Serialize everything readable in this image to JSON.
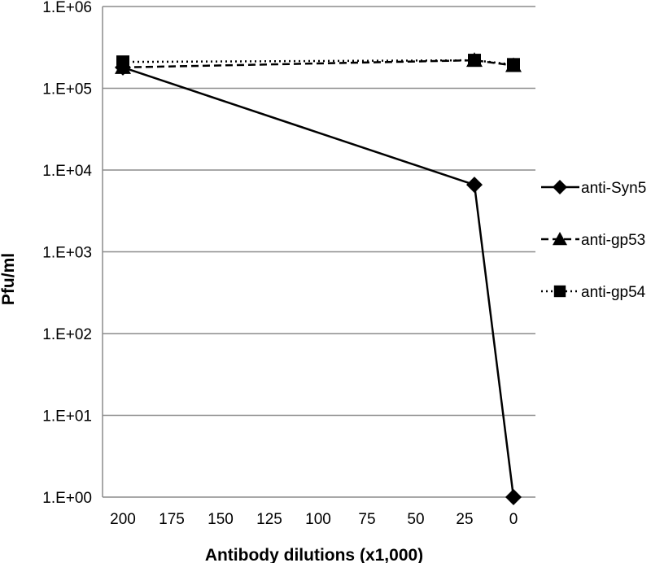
{
  "chart_data": {
    "type": "line",
    "title": "",
    "xlabel": "Antibody dilutions (x1,000)",
    "ylabel": "Pfu/ml",
    "x_scale": "linear-reversed",
    "y_scale": "log10",
    "xlim": [
      200,
      0
    ],
    "ylim": [
      1,
      1000000
    ],
    "x_ticks": [
      200,
      175,
      150,
      125,
      100,
      75,
      50,
      25,
      0
    ],
    "x_tick_labels": [
      "200",
      "175",
      "150",
      "125",
      "100",
      "75",
      "50",
      "25",
      "0"
    ],
    "y_ticks": [
      1,
      10,
      100,
      1000,
      10000,
      100000,
      1000000
    ],
    "y_tick_labels": [
      "1.E+00",
      "1.E+01",
      "1.E+02",
      "1.E+03",
      "1.E+04",
      "1.E+05",
      "1.E+06"
    ],
    "grid": "horizontal",
    "legend_position": "right",
    "series": [
      {
        "name": "anti-Syn5",
        "line_style": "solid",
        "marker": "diamond",
        "x": [
          200,
          20,
          0
        ],
        "y": [
          180000,
          6600,
          1
        ]
      },
      {
        "name": "anti-gp53",
        "line_style": "dashed",
        "marker": "triangle",
        "x": [
          200,
          20,
          0
        ],
        "y": [
          180000,
          220000,
          190000
        ]
      },
      {
        "name": "anti-gp54",
        "line_style": "dotted",
        "marker": "square",
        "x": [
          200,
          20,
          0
        ],
        "y": [
          210000,
          220000,
          195000
        ]
      }
    ]
  }
}
